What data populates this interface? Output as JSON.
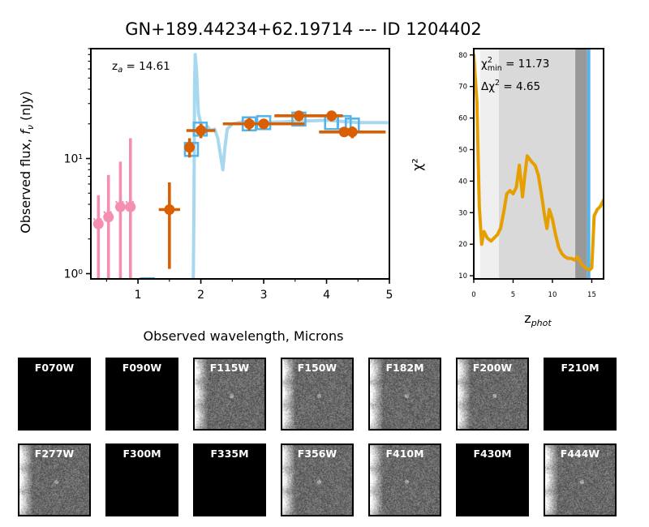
{
  "title": "GN+189.44234+62.19714 --- ID 1204402",
  "chart_data": [
    {
      "type": "scatter",
      "name": "sed",
      "xlabel": "Observed wavelength, Microns",
      "ylabel": "Observed flux, f_ν (nJy)",
      "ylabel_main": "Observed flux, ",
      "ylabel_sym": "f",
      "ylabel_sub": "ν",
      "ylabel_unit": " (nJy)",
      "yscale": "log",
      "xlim": [
        0.25,
        5.0
      ],
      "ylim": [
        0.9,
        90
      ],
      "xticks": [
        1,
        2,
        3,
        4,
        5
      ],
      "xtick_labels": [
        "1",
        "2",
        "3",
        "4",
        "5"
      ],
      "yticks": [
        1,
        10
      ],
      "ytick_labels": [
        "10⁰",
        "10¹"
      ],
      "annotation": "z_a = 14.61",
      "annotation_pre": "z",
      "annotation_sub": "a",
      "annotation_post": " = 14.61",
      "colors": {
        "photometry": "#d95f02",
        "model": "#56b4e9",
        "model_line": "#a6d8f0",
        "upper_limits": "#f48fb1"
      },
      "detections": [
        {
          "x": 1.5,
          "y": 3.6,
          "yerr": [
            1.1,
            6.2
          ],
          "xerr": [
            1.33,
            1.67
          ]
        },
        {
          "x": 1.82,
          "y": 12.5,
          "yerr": [
            10.2,
            15.0
          ],
          "xerr": [
            1.77,
            1.87
          ]
        },
        {
          "x": 2.0,
          "y": 17.5,
          "yerr": [
            15.0,
            20.0
          ],
          "xerr": [
            1.77,
            2.23
          ]
        },
        {
          "x": 2.77,
          "y": 20.0,
          "yerr": [
            17.5,
            22.5
          ],
          "xerr": [
            2.47,
            3.07
          ]
        },
        {
          "x": 3.0,
          "y": 20.0,
          "yerr": [
            18.0,
            22.0
          ],
          "xerr": [
            2.35,
            3.65
          ]
        },
        {
          "x": 3.56,
          "y": 23.5,
          "yerr": [
            21.0,
            26.0
          ],
          "xerr": [
            3.17,
            3.95
          ]
        },
        {
          "x": 4.08,
          "y": 23.5,
          "yerr": [
            21.0,
            26.0
          ],
          "xerr": [
            3.9,
            4.26
          ]
        },
        {
          "x": 4.28,
          "y": 17.0,
          "yerr": [
            15.5,
            18.5
          ],
          "xerr": [
            4.22,
            4.34
          ]
        },
        {
          "x": 4.41,
          "y": 17.0,
          "yerr": [
            15.0,
            19.0
          ],
          "xerr": [
            3.88,
            4.94
          ]
        }
      ],
      "upper_limits": [
        {
          "x": 0.37,
          "y": 2.7,
          "ylo": 0.9,
          "yhi": 4.8
        },
        {
          "x": 0.53,
          "y": 3.1,
          "ylo": 0.9,
          "yhi": 7.2
        },
        {
          "x": 0.72,
          "y": 3.8,
          "ylo": 0.9,
          "yhi": 9.4
        },
        {
          "x": 0.88,
          "y": 3.8,
          "ylo": 0.9,
          "yhi": 15.0
        }
      ],
      "model_points": [
        {
          "x": 1.15,
          "y": 0.8
        },
        {
          "x": 1.85,
          "y": 12.0
        },
        {
          "x": 1.99,
          "y": 18.0
        },
        {
          "x": 2.77,
          "y": 20.0
        },
        {
          "x": 3.0,
          "y": 20.5
        },
        {
          "x": 3.56,
          "y": 22.0
        },
        {
          "x": 4.08,
          "y": 20.5
        },
        {
          "x": 4.28,
          "y": 20.5
        },
        {
          "x": 4.41,
          "y": 19.5
        }
      ],
      "model_curve": [
        [
          1.88,
          0.9
        ],
        [
          1.89,
          4
        ],
        [
          1.9,
          40
        ],
        [
          1.91,
          80
        ],
        [
          1.93,
          60
        ],
        [
          1.96,
          25
        ],
        [
          2.0,
          20
        ],
        [
          2.05,
          18
        ],
        [
          2.1,
          19
        ],
        [
          2.16,
          17.5
        ],
        [
          2.22,
          18
        ],
        [
          2.27,
          15
        ],
        [
          2.32,
          10
        ],
        [
          2.35,
          8
        ],
        [
          2.38,
          12
        ],
        [
          2.42,
          18
        ],
        [
          2.5,
          20
        ],
        [
          2.7,
          21
        ],
        [
          3.0,
          20.5
        ],
        [
          3.5,
          21
        ],
        [
          4.0,
          21.5
        ],
        [
          4.5,
          20.5
        ],
        [
          5.0,
          20.5
        ]
      ]
    },
    {
      "type": "line",
      "name": "chi2",
      "xlabel": "z_phot",
      "xlabel_main": "z",
      "xlabel_sub": "phot",
      "ylabel": "χ²",
      "xlim": [
        0,
        16.5
      ],
      "ylim": [
        9,
        82
      ],
      "xticks": [
        0,
        5,
        10,
        15
      ],
      "xtick_labels": [
        "0",
        "5",
        "10",
        "15"
      ],
      "yticks": [
        10,
        20,
        30,
        40,
        50,
        60,
        70,
        80
      ],
      "ytick_labels": [
        "10",
        "20",
        "30",
        "40",
        "50",
        "60",
        "70",
        "80"
      ],
      "annotations": [
        {
          "pre": "χ",
          "sup": "2",
          "sub": "min",
          "post": " = 11.73"
        },
        {
          "pre": "Δχ",
          "sup": "2",
          "sub": "",
          "post": " = 4.65"
        }
      ],
      "color": "#e69f00",
      "marker_color": "#56b4e9",
      "best_z": 14.61,
      "bands": [
        {
          "x0": 0.8,
          "x1": 3.2,
          "color": "#efefef"
        },
        {
          "x0": 3.2,
          "x1": 12.9,
          "color": "#d9d9d9"
        },
        {
          "x0": 12.9,
          "x1": 14.4,
          "color": "#999999"
        }
      ],
      "x": [
        0.0,
        0.4,
        0.7,
        1.0,
        1.3,
        1.7,
        2.2,
        2.6,
        3.0,
        3.4,
        3.8,
        4.2,
        4.6,
        5.0,
        5.4,
        5.8,
        6.2,
        6.5,
        6.8,
        7.1,
        7.4,
        7.8,
        8.2,
        8.6,
        9.0,
        9.3,
        9.6,
        10.0,
        10.4,
        10.8,
        11.2,
        11.6,
        12.0,
        12.4,
        12.8,
        13.2,
        13.6,
        14.0,
        14.4,
        14.7,
        15.0,
        15.3,
        15.7,
        16.1,
        16.5
      ],
      "y": [
        80,
        65,
        32,
        20,
        24,
        22,
        21,
        22,
        23,
        25,
        30,
        36,
        37,
        36,
        38,
        45,
        35,
        42,
        48,
        47,
        46,
        45,
        42,
        36,
        29,
        25,
        31,
        28,
        23,
        19,
        17,
        16,
        15.5,
        15.5,
        15,
        16,
        14,
        13,
        12.2,
        11.8,
        12.5,
        29,
        31,
        32,
        34
      ]
    }
  ],
  "stamps": [
    {
      "label": "F070W",
      "has_data": false
    },
    {
      "label": "F090W",
      "has_data": false
    },
    {
      "label": "F115W",
      "has_data": true
    },
    {
      "label": "F150W",
      "has_data": true
    },
    {
      "label": "F182M",
      "has_data": true
    },
    {
      "label": "F200W",
      "has_data": true
    },
    {
      "label": "F210M",
      "has_data": false
    },
    {
      "label": "F277W",
      "has_data": true
    },
    {
      "label": "F300M",
      "has_data": false
    },
    {
      "label": "F335M",
      "has_data": false
    },
    {
      "label": "F356W",
      "has_data": true
    },
    {
      "label": "F410M",
      "has_data": true
    },
    {
      "label": "F430M",
      "has_data": false
    },
    {
      "label": "F444W",
      "has_data": true
    }
  ]
}
